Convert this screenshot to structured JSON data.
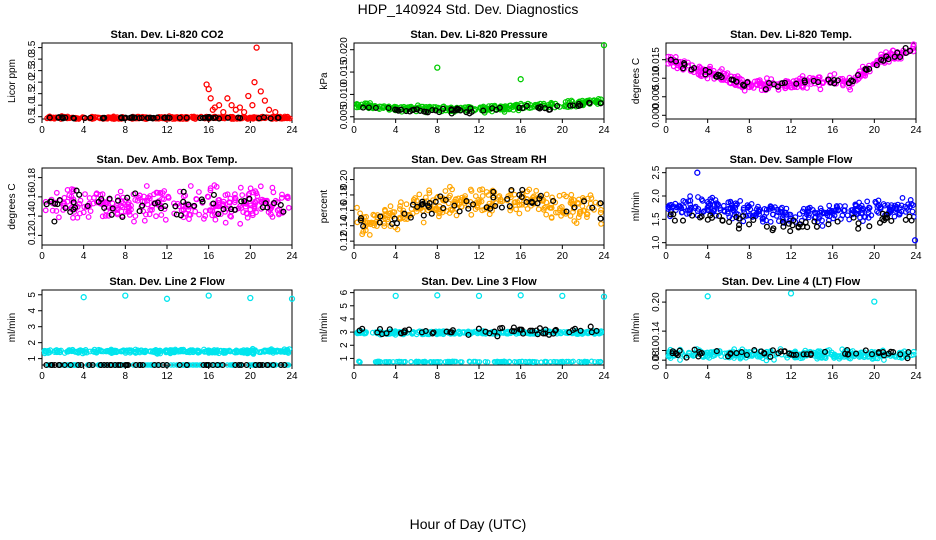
{
  "page": {
    "title": "HDP_140924  Std. Dev. Diagnostics",
    "xlabel": "Hour of Day (UTC)"
  },
  "chart_data": [
    {
      "type": "scatter",
      "title": "Stan. Dev. Li-820 CO2",
      "ylabel": "Licor ppm",
      "xlim": [
        0,
        24
      ],
      "xticks": [
        0,
        4,
        8,
        12,
        16,
        20,
        24
      ],
      "ylim": [
        0.4,
        3.7
      ],
      "yticks": [
        "0.5",
        "1.0",
        "1.5",
        "2.0",
        "2.5",
        "3.0",
        "3.5"
      ],
      "ytick_values": [
        0.5,
        1.0,
        1.5,
        2.0,
        2.5,
        3.0,
        3.5
      ],
      "color": "#ff0000",
      "base": 0.45,
      "noise": 0.05,
      "seed": 11,
      "black_base": 0.45,
      "black_noise": 0.03,
      "spikes": [
        [
          15.8,
          1.9
        ],
        [
          16.0,
          1.7
        ],
        [
          16.2,
          1.3
        ],
        [
          16.6,
          0.9
        ],
        [
          17.0,
          1.0
        ],
        [
          17.4,
          0.7
        ],
        [
          17.8,
          1.3
        ],
        [
          18.2,
          1.0
        ],
        [
          18.6,
          0.8
        ],
        [
          19.0,
          0.9
        ],
        [
          19.4,
          0.7
        ],
        [
          19.8,
          1.4
        ],
        [
          20.2,
          1.0
        ],
        [
          20.6,
          3.5
        ],
        [
          21.0,
          1.6
        ],
        [
          21.4,
          1.2
        ],
        [
          21.8,
          0.8
        ],
        [
          22.4,
          0.7
        ],
        [
          16.4,
          0.8
        ],
        [
          20.4,
          2.0
        ]
      ]
    },
    {
      "type": "scatter",
      "title": "Stan. Dev. Li-820 Pressure",
      "ylabel": "kPa",
      "xlim": [
        0,
        24
      ],
      "xticks": [
        0,
        4,
        8,
        12,
        16,
        20,
        24
      ],
      "ylim": [
        0.0045,
        0.0215
      ],
      "yticks": [
        "0.005",
        "0.010",
        "0.015",
        "0.020"
      ],
      "ytick_values": [
        0.005,
        0.01,
        0.015,
        0.02
      ],
      "color": "#00cc00",
      "base_curve": [
        [
          0,
          0.0075
        ],
        [
          6,
          0.0068
        ],
        [
          12,
          0.0067
        ],
        [
          16,
          0.0072
        ],
        [
          20,
          0.0078
        ],
        [
          24,
          0.0085
        ]
      ],
      "noise": 0.0006,
      "seed": 22,
      "black_offset": -0.0004,
      "black_noise": 0.0005,
      "spikes": [
        [
          8,
          0.016
        ],
        [
          16,
          0.0134
        ],
        [
          24,
          0.021
        ]
      ]
    },
    {
      "type": "scatter",
      "title": "Stan. Dev. Li-820 Temp.",
      "ylabel": "degrees C",
      "xlim": [
        0,
        24
      ],
      "xticks": [
        0,
        4,
        8,
        12,
        16,
        20,
        24
      ],
      "ylim": [
        -0.001,
        0.0195
      ],
      "yticks": [
        "0.000",
        "0.005",
        "0.010",
        "0.015"
      ],
      "ytick_values": [
        0.0,
        0.005,
        0.01,
        0.015
      ],
      "color": "#ff00ff",
      "base_curve": [
        [
          0,
          0.015
        ],
        [
          4,
          0.0115
        ],
        [
          8,
          0.008
        ],
        [
          12,
          0.0085
        ],
        [
          16,
          0.0095
        ],
        [
          18,
          0.009
        ],
        [
          20,
          0.014
        ],
        [
          24,
          0.0185
        ]
      ],
      "noise": 0.0015,
      "seed": 33,
      "black_offset": 0.0,
      "black_noise": 0.001,
      "spikes": []
    },
    {
      "type": "scatter",
      "title": "Stan. Dev. Amb. Box Temp.",
      "ylabel": "degrees C",
      "xlim": [
        0,
        24
      ],
      "xticks": [
        0,
        4,
        8,
        12,
        16,
        20,
        24
      ],
      "ylim": [
        0.11,
        0.19
      ],
      "yticks": [
        "0.12",
        "0.14",
        "0.16",
        "0.18"
      ],
      "ytick_values": [
        0.12,
        0.14,
        0.16,
        0.18
      ],
      "color": "#ff00ff",
      "base": 0.152,
      "noise": 0.014,
      "seed": 44,
      "black_base": 0.152,
      "black_noise": 0.012,
      "spikes": []
    },
    {
      "type": "scatter",
      "title": "Stan. Dev. Gas Stream RH",
      "ylabel": "percent",
      "xlim": [
        0,
        24
      ],
      "xticks": [
        0,
        4,
        8,
        12,
        16,
        20,
        24
      ],
      "ylim": [
        0.115,
        0.215
      ],
      "yticks": [
        "0.12",
        "0.14",
        "0.16",
        "0.18",
        "0.20"
      ],
      "ytick_values": [
        0.12,
        0.14,
        0.16,
        0.18,
        0.2
      ],
      "color": "#ffa500",
      "base_curve": [
        [
          0,
          0.145
        ],
        [
          4,
          0.148
        ],
        [
          6,
          0.165
        ],
        [
          12,
          0.172
        ],
        [
          18,
          0.17
        ],
        [
          24,
          0.16
        ]
      ],
      "noise": 0.015,
      "seed": 55,
      "black_offset": 0.0,
      "black_noise": 0.012,
      "spikes": []
    },
    {
      "type": "scatter",
      "title": "Stan. Dev. Sample Flow",
      "ylabel": "ml/min",
      "xlim": [
        0,
        24
      ],
      "xticks": [
        0,
        4,
        8,
        12,
        16,
        20,
        24
      ],
      "ylim": [
        0.95,
        2.6
      ],
      "yticks": [
        "1.0",
        "1.5",
        "2.0",
        "2.5"
      ],
      "ytick_values": [
        1.0,
        1.5,
        2.0,
        2.5
      ],
      "color": "#0000ff",
      "base_curve": [
        [
          0,
          1.8
        ],
        [
          6,
          1.75
        ],
        [
          10,
          1.6
        ],
        [
          14,
          1.6
        ],
        [
          18,
          1.7
        ],
        [
          24,
          1.75
        ]
      ],
      "noise": 0.17,
      "seed": 66,
      "black_offset": -0.25,
      "black_noise": 0.12,
      "spikes": [
        [
          3,
          2.5
        ],
        [
          23.9,
          1.05
        ]
      ]
    },
    {
      "type": "scatter",
      "title": "Stan. Dev. Line 2 Flow",
      "ylabel": "ml/min",
      "xlim": [
        0,
        24
      ],
      "xticks": [
        0,
        4,
        8,
        12,
        16,
        20,
        24
      ],
      "ylim": [
        0.6,
        5.3
      ],
      "yticks": [
        "1",
        "2",
        "3",
        "4",
        "5"
      ],
      "ytick_values": [
        1,
        2,
        3,
        4,
        5
      ],
      "color": "#00e5ee",
      "base": 1.45,
      "noise": 0.1,
      "seed": 77,
      "black_base": 0.55,
      "black_noise": 0.02,
      "lower_band": 0.55,
      "spikes": [
        [
          4,
          4.85
        ],
        [
          8,
          4.95
        ],
        [
          12,
          4.75
        ],
        [
          16,
          4.95
        ],
        [
          20,
          4.8
        ],
        [
          24,
          4.75
        ]
      ]
    },
    {
      "type": "scatter",
      "title": "Stan. Dev. Line 3 Flow",
      "ylabel": "ml/min",
      "xlim": [
        0,
        24
      ],
      "xticks": [
        0,
        4,
        8,
        12,
        16,
        20,
        24
      ],
      "ylim": [
        0.5,
        6.2
      ],
      "yticks": [
        "1",
        "2",
        "3",
        "4",
        "5",
        "6"
      ],
      "ytick_values": [
        1,
        2,
        3,
        4,
        5,
        6
      ],
      "color": "#00e5ee",
      "base": 2.95,
      "noise": 0.1,
      "seed": 88,
      "black_base": 3.05,
      "black_noise": 0.25,
      "lower_band": 0.75,
      "spikes": [
        [
          4,
          5.75
        ],
        [
          8,
          5.8
        ],
        [
          12,
          5.75
        ],
        [
          16,
          5.8
        ],
        [
          20,
          5.75
        ],
        [
          24,
          5.7
        ]
      ]
    },
    {
      "type": "scatter",
      "title": "Stan. Dev. Line 4 (LT) Flow",
      "ylabel": "ml/min",
      "xlim": [
        0,
        24
      ],
      "xticks": [
        0,
        4,
        8,
        12,
        16,
        20,
        24
      ],
      "ylim": [
        0.07,
        0.225
      ],
      "yticks": [
        "0.08",
        "0.10",
        "0.14",
        "0.20"
      ],
      "ytick_values": [
        0.08,
        0.1,
        0.14,
        0.2
      ],
      "color": "#00e5ee",
      "base": 0.092,
      "noise": 0.008,
      "seed": 99,
      "black_base": 0.094,
      "black_noise": 0.007,
      "spikes": [
        [
          4,
          0.212
        ],
        [
          12,
          0.218
        ],
        [
          20,
          0.201
        ]
      ]
    }
  ]
}
